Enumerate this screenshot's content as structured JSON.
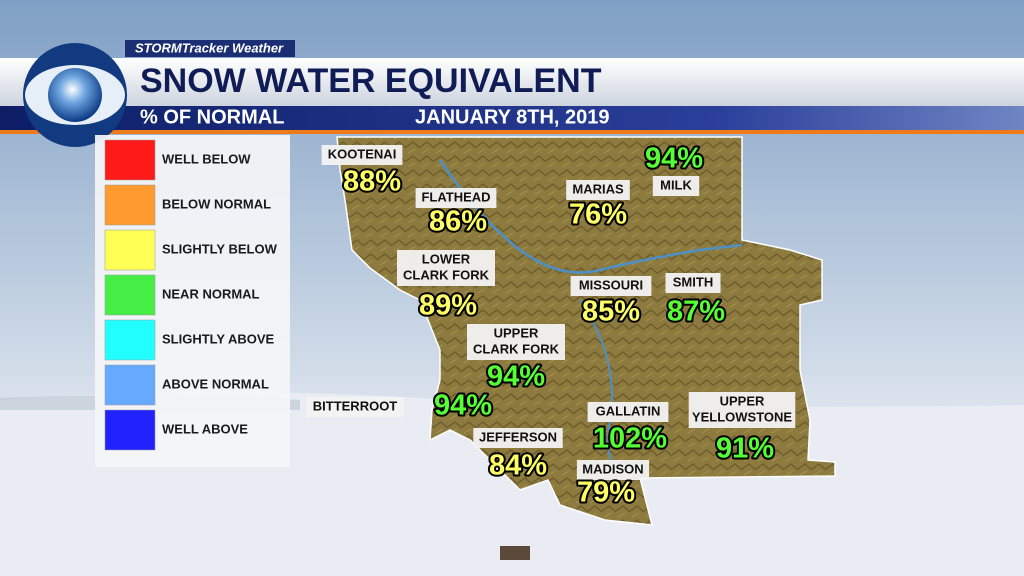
{
  "header": {
    "brand": "STORMTracker Weather",
    "title": "SNOW WATER EQUIVALENT",
    "subtitle": "% OF NORMAL",
    "date": "JANUARY 8TH, 2019"
  },
  "legend": [
    {
      "label": "WELL BELOW",
      "color": "#ff1a1a"
    },
    {
      "label": "BELOW NORMAL",
      "color": "#ff9a2e"
    },
    {
      "label": "SLIGHTLY BELOW",
      "color": "#ffff55"
    },
    {
      "label": "NEAR NORMAL",
      "color": "#44ee44"
    },
    {
      "label": "SLIGHTLY ABOVE",
      "color": "#22ffff"
    },
    {
      "label": "ABOVE NORMAL",
      "color": "#66aaff"
    },
    {
      "label": "WELL ABOVE",
      "color": "#2222ff"
    }
  ],
  "regions": [
    {
      "name_lines": [
        "KOOTENAI"
      ],
      "percent": "88%"
    },
    {
      "name_lines": [
        "FLATHEAD"
      ],
      "percent": "86%"
    },
    {
      "name_lines": [
        "MARIAS"
      ],
      "percent": "76%"
    },
    {
      "name_lines": [
        "MILK"
      ],
      "percent": "94%"
    },
    {
      "name_lines": [
        "LOWER",
        "CLARK FORK"
      ],
      "percent": "89%"
    },
    {
      "name_lines": [
        "MISSOURI"
      ],
      "percent": "85%"
    },
    {
      "name_lines": [
        "SMITH"
      ],
      "percent": "87%"
    },
    {
      "name_lines": [
        "UPPER",
        "CLARK FORK"
      ],
      "percent": "94%"
    },
    {
      "name_lines": [
        "BITTERROOT"
      ],
      "percent": "94%"
    },
    {
      "name_lines": [
        "GALLATIN"
      ],
      "percent": "102%"
    },
    {
      "name_lines": [
        "UPPER",
        "YELLOWSTONE"
      ],
      "percent": "91%"
    },
    {
      "name_lines": [
        "JEFFERSON"
      ],
      "percent": "84%"
    },
    {
      "name_lines": [
        "MADISON"
      ],
      "percent": "79%"
    }
  ]
}
